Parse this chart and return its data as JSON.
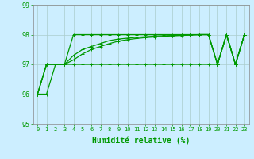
{
  "xlabel": "Humidité relative (%)",
  "xlim": [
    -0.5,
    23.5
  ],
  "ylim": [
    95,
    99
  ],
  "yticks": [
    95,
    96,
    97,
    98,
    99
  ],
  "xticks": [
    0,
    1,
    2,
    3,
    4,
    5,
    6,
    7,
    8,
    9,
    10,
    11,
    12,
    13,
    14,
    15,
    16,
    17,
    18,
    19,
    20,
    21,
    22,
    23
  ],
  "bg_color": "#cceeff",
  "grid_color": "#aacccc",
  "line_color": "#009900",
  "lines": [
    [
      96,
      96,
      97,
      97,
      98,
      98,
      98,
      98,
      98,
      98,
      98,
      98,
      98,
      98,
      98,
      98,
      98,
      98,
      98,
      98,
      97,
      98,
      97,
      98
    ],
    [
      96,
      97,
      97,
      97,
      97,
      97,
      97,
      97,
      97,
      97,
      97,
      97,
      97,
      97,
      97,
      97,
      97,
      97,
      97,
      97,
      97,
      98,
      97,
      98
    ],
    [
      96,
      97,
      97,
      97,
      97.3,
      97.5,
      97.6,
      97.7,
      97.8,
      97.85,
      97.88,
      97.91,
      97.93,
      97.95,
      97.96,
      97.97,
      97.98,
      97.99,
      98,
      98,
      97,
      98,
      97,
      98
    ],
    [
      96,
      97,
      97,
      97,
      97.15,
      97.35,
      97.5,
      97.6,
      97.7,
      97.78,
      97.83,
      97.87,
      97.9,
      97.92,
      97.94,
      97.96,
      97.97,
      97.985,
      98,
      98,
      97,
      98,
      97,
      98
    ]
  ],
  "xlabel_fontsize": 7,
  "xtick_fontsize": 5,
  "ytick_fontsize": 6,
  "linewidth": 0.9,
  "markersize": 2.5
}
